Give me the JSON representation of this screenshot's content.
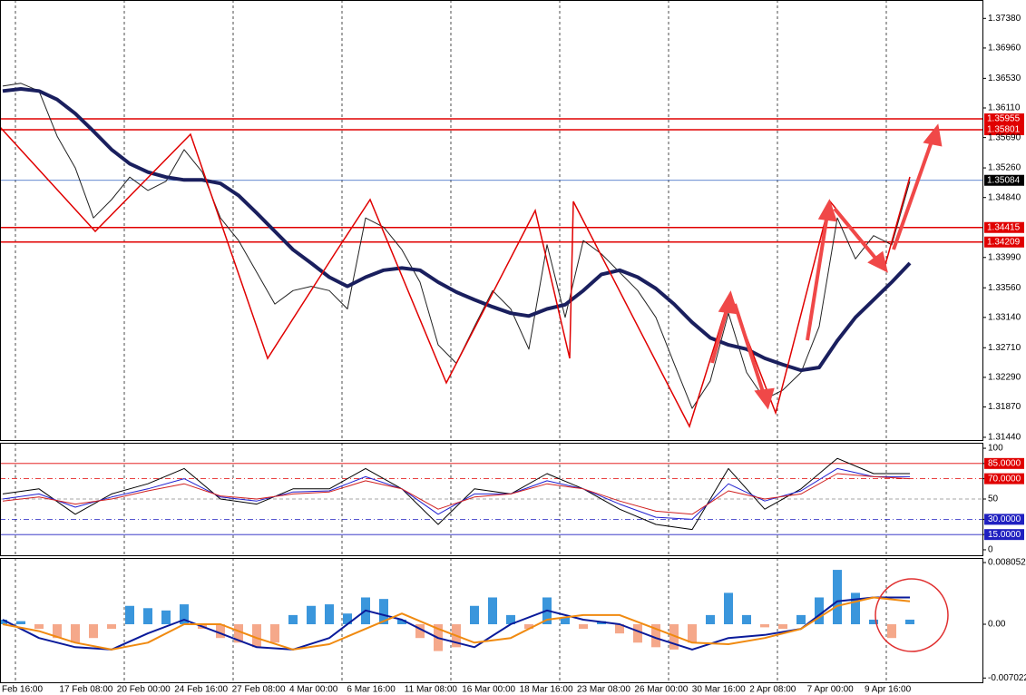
{
  "chart_data": [
    {
      "type": "line",
      "ylim": [
        1.31401,
        1.37641
      ],
      "yticks": [
        {
          "value": 1.3738,
          "label": "1.37380"
        },
        {
          "value": 1.3696,
          "label": "1.36960"
        },
        {
          "value": 1.3653,
          "label": "1.36530"
        },
        {
          "value": 1.3611,
          "label": "1.36110"
        },
        {
          "value": 1.3569,
          "label": "1.35690"
        },
        {
          "value": 1.3526,
          "label": "1.35260"
        },
        {
          "value": 1.3484,
          "label": "1.34840"
        },
        {
          "value": 1.3399,
          "label": "1.33990"
        },
        {
          "value": 1.3356,
          "label": "1.33560"
        },
        {
          "value": 1.3314,
          "label": "1.33140"
        },
        {
          "value": 1.3271,
          "label": "1.32710"
        },
        {
          "value": 1.3229,
          "label": "1.32290"
        },
        {
          "value": 1.3187,
          "label": "1.31870"
        },
        {
          "value": 1.3144,
          "label": "1.31440"
        }
      ],
      "levels": [
        {
          "value": 1.35955,
          "color": "#e00000"
        },
        {
          "value": 1.35801,
          "color": "#e00000"
        },
        {
          "value": 1.35084,
          "color": "#3060c0"
        },
        {
          "value": 1.34415,
          "color": "#e00000"
        },
        {
          "value": 1.34209,
          "color": "#e00000"
        }
      ],
      "series": [
        {
          "color": "#222222",
          "values": [
            1.3642,
            1.3646,
            1.3635,
            1.3571,
            1.3526,
            1.3455,
            1.3481,
            1.3513,
            1.3494,
            1.3507,
            1.3552,
            1.352,
            1.3455,
            1.3423,
            1.3378,
            1.3333,
            1.3352,
            1.3358,
            1.3352,
            1.3326,
            1.3455,
            1.3442,
            1.341,
            1.3364,
            1.3275,
            1.3249,
            1.3301,
            1.3352,
            1.3326,
            1.3269,
            1.3417,
            1.3314,
            1.3423,
            1.3404,
            1.3378,
            1.3352,
            1.3314,
            1.3249,
            1.3185,
            1.3224,
            1.332,
            1.3236,
            1.3198,
            1.3211,
            1.3236,
            1.3301,
            1.3455,
            1.3397,
            1.343,
            1.3417,
            1.3507
          ]
        },
        {
          "color": "#1a1f5e",
          "values": [
            1.3635,
            1.3638,
            1.3635,
            1.3623,
            1.3603,
            1.3578,
            1.3552,
            1.3532,
            1.352,
            1.3513,
            1.3509,
            1.3509,
            1.3504,
            1.3487,
            1.3462,
            1.3436,
            1.341,
            1.3391,
            1.3371,
            1.3358,
            1.3371,
            1.3381,
            1.3384,
            1.3381,
            1.3364,
            1.335,
            1.3339,
            1.3329,
            1.332,
            1.3316,
            1.3326,
            1.3332,
            1.3352,
            1.3375,
            1.3381,
            1.3371,
            1.3355,
            1.3333,
            1.3307,
            1.3285,
            1.3275,
            1.3269,
            1.3256,
            1.3247,
            1.3239,
            1.3243,
            1.3281,
            1.3314,
            1.3339,
            1.3364,
            1.3391
          ]
        }
      ]
    },
    {
      "type": "line",
      "ylim": [
        -5.4,
        105.4
      ],
      "yticks": [
        100,
        {
          "value": 85,
          "label": "85.0000"
        },
        {
          "value": 70,
          "label": "70.0000"
        },
        50,
        {
          "value": 30,
          "label": "30.0000"
        },
        {
          "value": 15,
          "label": "15.0000"
        },
        0
      ],
      "levels": [
        {
          "value": 85,
          "color": "#e00000",
          "dash": "solid"
        },
        {
          "value": 70,
          "color": "#e00000",
          "dash": "dashdot"
        },
        {
          "value": 50,
          "color": "#888888",
          "dash": "dash"
        },
        {
          "value": 30,
          "color": "#2020c0",
          "dash": "dashdot"
        },
        {
          "value": 15,
          "color": "#2020c0",
          "dash": "solid"
        }
      ],
      "series": [
        {
          "color": "#000000",
          "values": [
            55,
            60,
            35,
            55,
            65,
            80,
            50,
            45,
            60,
            60,
            80,
            60,
            25,
            60,
            55,
            75,
            60,
            40,
            25,
            20,
            80,
            40,
            60,
            90,
            75,
            75
          ]
        },
        {
          "color": "#2020d0",
          "values": [
            50,
            55,
            42,
            52,
            60,
            70,
            52,
            48,
            57,
            58,
            72,
            60,
            35,
            55,
            55,
            68,
            60,
            45,
            32,
            30,
            65,
            48,
            58,
            80,
            72,
            72
          ]
        },
        {
          "color": "#d02020",
          "values": [
            48,
            52,
            45,
            50,
            58,
            65,
            53,
            50,
            55,
            57,
            68,
            60,
            40,
            52,
            55,
            65,
            60,
            48,
            38,
            35,
            58,
            50,
            55,
            75,
            72,
            70
          ]
        }
      ]
    },
    {
      "type": "bar",
      "ylim": [
        -0.00758,
        0.00865
      ],
      "yticks": [
        0.0080527,
        {
          "value": 0,
          "label": "0.00"
        },
        -0.007022
      ],
      "positive_color": "#3a96dc",
      "negative_color": "#f5a88a",
      "values": [
        0.0006,
        0.0004,
        -0.0006,
        -0.0018,
        -0.0024,
        -0.0018,
        -0.0006,
        0.0024,
        0.0021,
        0.0018,
        0.0026,
        -0.0006,
        -0.0018,
        -0.0024,
        -0.003,
        -0.0024,
        0.0012,
        0.0024,
        0.0026,
        0.0014,
        0.0035,
        0.0033,
        0.0006,
        -0.0018,
        -0.0035,
        -0.003,
        0.0024,
        0.0035,
        0.0012,
        -0.0006,
        0.0035,
        0.0009,
        -0.0006,
        0.0004,
        -0.0012,
        -0.0024,
        -0.003,
        -0.0033,
        -0.0024,
        0.0012,
        0.0041,
        0.0012,
        -0.0004,
        -0.0006,
        0.0012,
        0.0035,
        0.0071,
        0.0041,
        0.0006,
        -0.0018,
        0.0006
      ],
      "series": [
        {
          "color": "#0a1a9a",
          "values": [
            0.0006,
            -0.0018,
            -0.003,
            -0.0033,
            -0.0012,
            0.0006,
            -0.0012,
            -0.003,
            -0.0033,
            -0.0018,
            0.0018,
            0.0006,
            -0.0018,
            -0.003,
            0,
            0.0018,
            0.0006,
            0,
            -0.0018,
            -0.0033,
            -0.0018,
            -0.0014,
            -0.0006,
            0.003,
            0.0035,
            0.0035
          ]
        },
        {
          "color": "#f08a10",
          "values": [
            0,
            -0.0009,
            -0.0024,
            -0.0033,
            -0.0024,
            0,
            0,
            -0.0018,
            -0.0033,
            -0.0026,
            -0.0006,
            0.0014,
            -0.0006,
            -0.0024,
            -0.0018,
            0.0006,
            0.0012,
            0.0012,
            -0.0006,
            -0.0024,
            -0.0026,
            -0.0018,
            -0.0006,
            0.0024,
            0.0035,
            0.003
          ]
        }
      ],
      "xtick_labels": [
        "Feb 16:00",
        "17 Feb 08:00",
        "20 Feb 00:00",
        "24 Feb 16:00",
        "27 Feb 08:00",
        "4 Mar 00:00",
        "6 Mar 16:00",
        "11 Mar 08:00",
        "16 Mar 00:00",
        "18 Mar 16:00",
        "23 Mar 08:00",
        "26 Mar 00:00",
        "30 Mar 16:00",
        "2 Apr 08:00",
        "7 Apr 00:00",
        "9 Apr 16:00"
      ]
    }
  ]
}
